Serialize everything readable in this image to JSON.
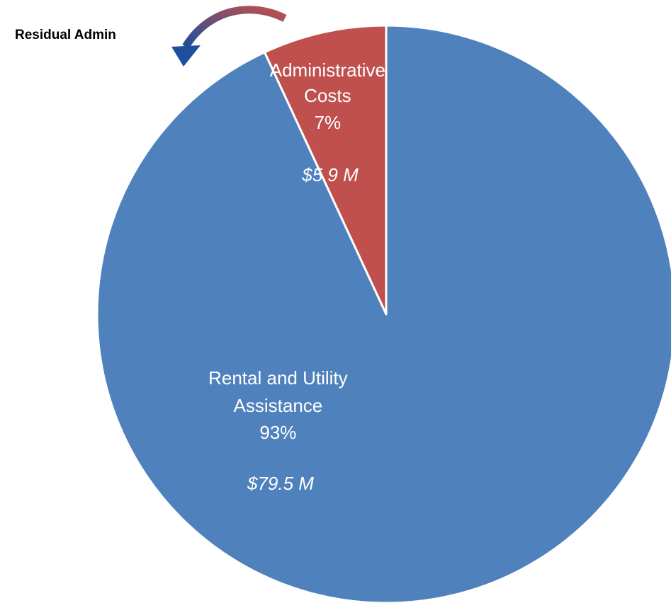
{
  "chart_data": {
    "type": "pie",
    "start": "top",
    "direction": "counterclockwise",
    "slices": [
      {
        "name_lines": [
          "Administrative",
          "Costs"
        ],
        "percent_label": "7%",
        "amount_label": "$5.9 M",
        "value": 5.9,
        "color": "#c0504d"
      },
      {
        "name_lines": [
          "Rental and Utility",
          "Assistance"
        ],
        "percent_label": "93%",
        "amount_label": "$79.5 M",
        "value": 79.5,
        "color": "#4f81bd"
      }
    ],
    "slice_border_color": "#ffffff"
  },
  "annotation": {
    "label": "Residual Admin",
    "arrow_colors": [
      "#1f4e9c",
      "#c0504d"
    ],
    "arrow_icon": "curved-arrow-icon"
  }
}
